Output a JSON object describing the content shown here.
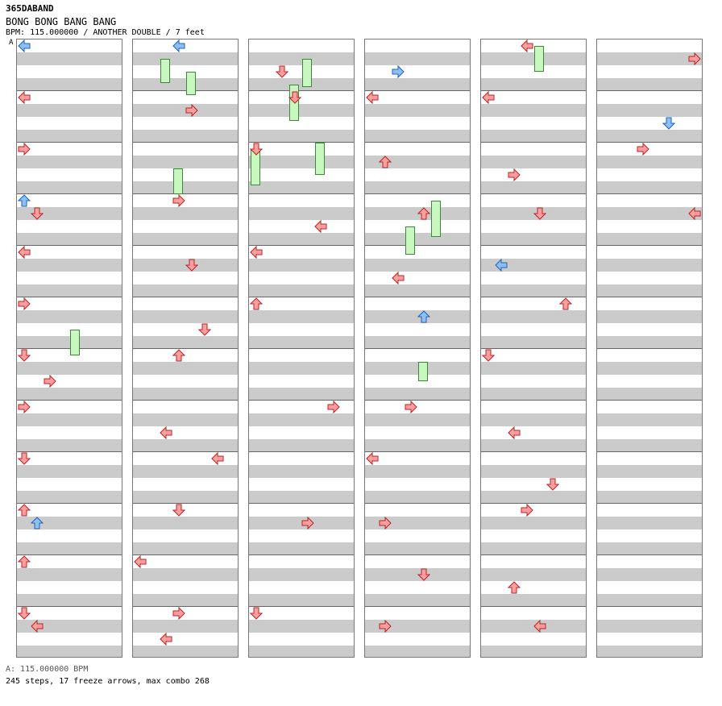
{
  "header": {
    "group": "365DABAND",
    "title": "BONG BONG BANG BANG",
    "info": "BPM: 115.000000 / ANOTHER DOUBLE / 7 feet",
    "marker": "A"
  },
  "footer": {
    "bpm_line": "A: 115.000000 BPM",
    "stats_line": "245 steps, 17 freeze arrows, max combo 268"
  },
  "colors": {
    "red_note": "#f8a0a0",
    "red_stroke": "#c02020",
    "blue_note": "#8cc0f0",
    "blue_stroke": "#2060c0",
    "freeze_fill": "#c8f8c0",
    "freeze_stroke": "#3a8a3a",
    "stripe": "#cbcbcb"
  },
  "chart": {
    "columns": 6,
    "measures_per_column": 12,
    "lanes": 8,
    "notes": [
      [
        [
          0,
          0,
          "b",
          "l"
        ],
        [
          1,
          0,
          "r",
          "l"
        ],
        [
          2,
          0,
          "r",
          "r"
        ],
        [
          3,
          0,
          "b",
          "u"
        ],
        [
          3,
          1,
          "r",
          "d"
        ],
        [
          4,
          0,
          "r",
          "l"
        ],
        [
          5,
          0,
          "r",
          "r"
        ],
        [
          6,
          0,
          "r",
          "d"
        ],
        [
          6,
          2,
          "r",
          "r"
        ],
        [
          7,
          0,
          "r",
          "r"
        ],
        [
          8,
          0,
          "r",
          "d"
        ],
        [
          9,
          0,
          "r",
          "u"
        ],
        [
          9,
          1,
          "b",
          "u"
        ],
        [
          10,
          0,
          "r",
          "u"
        ],
        [
          11,
          0,
          "r",
          "d"
        ],
        [
          11,
          1,
          "r",
          "l"
        ]
      ],
      [
        [
          0,
          3,
          "b",
          "l"
        ],
        [
          1,
          4,
          "r",
          "r"
        ],
        [
          3,
          3,
          "r",
          "r"
        ],
        [
          4,
          4,
          "r",
          "d"
        ],
        [
          5,
          5,
          "r",
          "d"
        ],
        [
          6,
          3,
          "r",
          "u"
        ],
        [
          7,
          2,
          "r",
          "l"
        ],
        [
          8,
          6,
          "r",
          "l"
        ],
        [
          9,
          3,
          "r",
          "d"
        ],
        [
          10,
          0,
          "r",
          "l"
        ],
        [
          11,
          2,
          "r",
          "l"
        ],
        [
          11,
          3,
          "r",
          "r"
        ]
      ],
      [
        [
          0,
          2,
          "r",
          "d"
        ],
        [
          1,
          3,
          "r",
          "d"
        ],
        [
          2,
          0,
          "r",
          "d"
        ],
        [
          3,
          5,
          "r",
          "l"
        ],
        [
          4,
          0,
          "r",
          "l"
        ],
        [
          5,
          0,
          "r",
          "u"
        ],
        [
          7,
          6,
          "r",
          "r"
        ],
        [
          9,
          4,
          "r",
          "r"
        ],
        [
          11,
          0,
          "r",
          "d"
        ]
      ],
      [
        [
          0,
          2,
          "b",
          "r"
        ],
        [
          1,
          0,
          "r",
          "l"
        ],
        [
          2,
          1,
          "r",
          "u"
        ],
        [
          3,
          4,
          "r",
          "u"
        ],
        [
          4,
          2,
          "r",
          "l"
        ],
        [
          5,
          4,
          "b",
          "u"
        ],
        [
          7,
          3,
          "r",
          "r"
        ],
        [
          8,
          0,
          "r",
          "l"
        ],
        [
          9,
          1,
          "r",
          "r"
        ],
        [
          10,
          4,
          "r",
          "d"
        ],
        [
          11,
          1,
          "r",
          "r"
        ]
      ],
      [
        [
          0,
          3,
          "r",
          "l"
        ],
        [
          1,
          0,
          "r",
          "l"
        ],
        [
          2,
          2,
          "r",
          "r"
        ],
        [
          3,
          4,
          "r",
          "d"
        ],
        [
          4,
          1,
          "b",
          "l"
        ],
        [
          5,
          6,
          "r",
          "u"
        ],
        [
          6,
          0,
          "r",
          "d"
        ],
        [
          7,
          2,
          "r",
          "l"
        ],
        [
          8,
          5,
          "r",
          "d"
        ],
        [
          9,
          3,
          "r",
          "r"
        ],
        [
          10,
          2,
          "r",
          "u"
        ],
        [
          11,
          4,
          "r",
          "l"
        ]
      ],
      [
        [
          0,
          7,
          "r",
          "r"
        ],
        [
          1,
          5,
          "b",
          "d"
        ],
        [
          2,
          3,
          "r",
          "r"
        ],
        [
          3,
          7,
          "r",
          "l"
        ]
      ]
    ],
    "freezes": [
      [
        1,
        2,
        1.0,
        2.9
      ],
      [
        1,
        3,
        9.5,
        11.5
      ],
      [
        1,
        4,
        2.0,
        3.8
      ],
      [
        2,
        0,
        8.0,
        10.8
      ],
      [
        2,
        3,
        3.0,
        5.8
      ],
      [
        2,
        5,
        7.5,
        10.0
      ],
      [
        2,
        4,
        1.0,
        3.2
      ],
      [
        3,
        3,
        14.0,
        16.2
      ],
      [
        3,
        5,
        12.0,
        14.8
      ],
      [
        3,
        4,
        24.5,
        26.0
      ],
      [
        4,
        4,
        0.0,
        2.0
      ],
      [
        0,
        4,
        22.0,
        24.0
      ]
    ]
  }
}
